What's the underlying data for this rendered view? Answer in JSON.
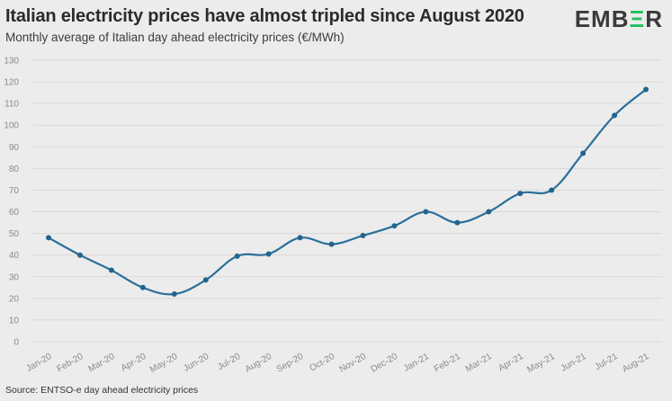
{
  "header": {
    "title": "Italian electricity prices have almost tripled since August 2020",
    "subtitle": "Monthly average of Italian day ahead electricity prices (€/MWh)"
  },
  "brand": {
    "logo_start": "EMB",
    "logo_accent": "Ξ",
    "logo_end": "R",
    "accent_color": "#20c05c"
  },
  "footer": {
    "source": "Source: ENTSO-e day ahead electricity prices"
  },
  "chart_data": {
    "type": "line",
    "title": "Italian electricity prices have almost tripled since August 2020",
    "subtitle": "Monthly average of Italian day ahead electricity prices (€/MWh)",
    "xlabel": "",
    "ylabel": "",
    "ylim": [
      0,
      130
    ],
    "yticks": [
      0,
      10,
      20,
      30,
      40,
      50,
      60,
      70,
      80,
      90,
      100,
      110,
      120,
      130
    ],
    "grid": true,
    "categories": [
      "Jan-20",
      "Feb-20",
      "Mar-20",
      "Apr-20",
      "May-20",
      "Jun-20",
      "Jul-20",
      "Aug-20",
      "Sep-20",
      "Oct-20",
      "Nov-20",
      "Dec-20",
      "Jan-21",
      "Feb-21",
      "Mar-21",
      "Apr-21",
      "May-21",
      "Jun-21",
      "Jul-21",
      "Aug-21"
    ],
    "series": [
      {
        "color": "#2a6f9b",
        "values": [
          48,
          40,
          33,
          25,
          22,
          28.5,
          39.5,
          40.5,
          48,
          45,
          49,
          53.5,
          60,
          55,
          60,
          68.5,
          70,
          87,
          104.5,
          116.5
        ]
      }
    ]
  }
}
